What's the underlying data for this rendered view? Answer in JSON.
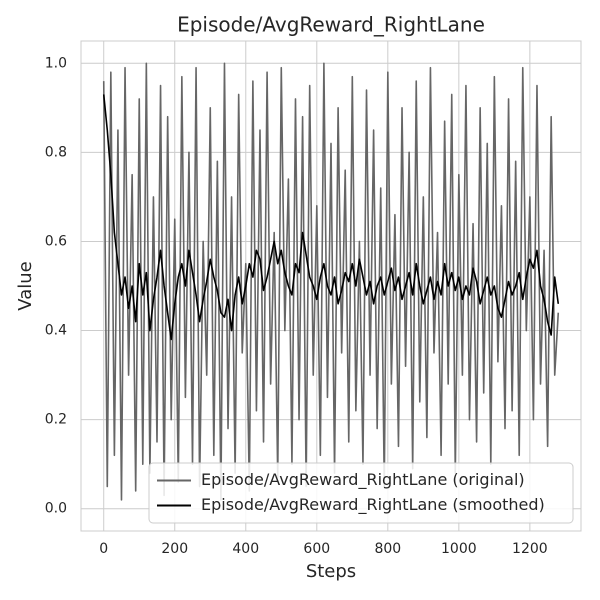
{
  "chart_data": {
    "type": "line",
    "title": "Episode/AvgReward_RightLane",
    "x_label": "Steps",
    "y_label": "Value",
    "x": [
      0,
      10,
      20,
      30,
      40,
      50,
      60,
      70,
      80,
      90,
      100,
      110,
      120,
      130,
      140,
      150,
      160,
      170,
      180,
      190,
      200,
      210,
      220,
      230,
      240,
      250,
      260,
      270,
      280,
      290,
      300,
      310,
      320,
      330,
      340,
      350,
      360,
      370,
      380,
      390,
      400,
      410,
      420,
      430,
      440,
      450,
      460,
      470,
      480,
      490,
      500,
      510,
      520,
      530,
      540,
      550,
      560,
      570,
      580,
      590,
      600,
      610,
      620,
      630,
      640,
      650,
      660,
      670,
      680,
      690,
      700,
      710,
      720,
      730,
      740,
      750,
      760,
      770,
      780,
      790,
      800,
      810,
      820,
      830,
      840,
      850,
      860,
      870,
      880,
      890,
      900,
      910,
      920,
      930,
      940,
      950,
      960,
      970,
      980,
      990,
      1000,
      1010,
      1020,
      1030,
      1040,
      1050,
      1060,
      1070,
      1080,
      1090,
      1100,
      1110,
      1120,
      1130,
      1140,
      1150,
      1160,
      1170,
      1180,
      1190,
      1200,
      1210,
      1220,
      1230,
      1240,
      1250,
      1260,
      1270,
      1280
    ],
    "series": [
      {
        "name": "Episode/AvgReward_RightLane (original)",
        "color": "#666666",
        "values": [
          0.96,
          0.05,
          0.98,
          0.12,
          0.85,
          0.02,
          0.99,
          0.3,
          0.75,
          0.04,
          0.92,
          0.1,
          1.0,
          0.08,
          0.7,
          0.15,
          0.95,
          0.03,
          0.88,
          0.2,
          0.65,
          0.06,
          0.97,
          0.25,
          0.8,
          0.1,
          0.99,
          0.05,
          0.6,
          0.3,
          0.9,
          0.12,
          0.78,
          0.02,
          1.0,
          0.18,
          0.7,
          0.08,
          0.93,
          0.35,
          0.55,
          0.04,
          0.96,
          0.22,
          0.85,
          0.15,
          0.98,
          0.28,
          0.62,
          0.07,
          0.99,
          0.4,
          0.74,
          0.1,
          0.92,
          0.2,
          0.88,
          0.05,
          0.95,
          0.3,
          0.68,
          0.12,
          1.0,
          0.25,
          0.82,
          0.08,
          0.9,
          0.35,
          0.76,
          0.15,
          0.97,
          0.22,
          0.6,
          0.1,
          0.94,
          0.3,
          0.85,
          0.18,
          0.72,
          0.05,
          0.98,
          0.28,
          0.66,
          0.14,
          0.9,
          0.32,
          0.8,
          0.09,
          0.96,
          0.24,
          0.7,
          0.16,
          0.99,
          0.35,
          0.62,
          0.12,
          0.87,
          0.28,
          0.93,
          0.08,
          0.75,
          0.3,
          0.95,
          0.2,
          0.64,
          0.15,
          0.9,
          0.26,
          0.82,
          0.1,
          0.97,
          0.33,
          0.68,
          0.18,
          0.92,
          0.22,
          0.78,
          0.12,
          0.99,
          0.4,
          0.7,
          0.2,
          0.95,
          0.28,
          0.58,
          0.14,
          0.88,
          0.3,
          0.44
        ]
      },
      {
        "name": "Episode/AvgReward_RightLane (smoothed)",
        "color": "#000000",
        "values": [
          0.93,
          0.85,
          0.75,
          0.62,
          0.55,
          0.48,
          0.52,
          0.45,
          0.5,
          0.42,
          0.55,
          0.48,
          0.53,
          0.4,
          0.47,
          0.52,
          0.58,
          0.5,
          0.44,
          0.38,
          0.46,
          0.52,
          0.55,
          0.5,
          0.58,
          0.53,
          0.48,
          0.42,
          0.47,
          0.51,
          0.56,
          0.52,
          0.49,
          0.44,
          0.43,
          0.47,
          0.4,
          0.48,
          0.52,
          0.46,
          0.5,
          0.55,
          0.52,
          0.58,
          0.56,
          0.49,
          0.52,
          0.56,
          0.6,
          0.55,
          0.58,
          0.53,
          0.5,
          0.48,
          0.55,
          0.53,
          0.62,
          0.57,
          0.52,
          0.5,
          0.47,
          0.52,
          0.55,
          0.5,
          0.48,
          0.52,
          0.46,
          0.49,
          0.53,
          0.51,
          0.55,
          0.5,
          0.56,
          0.52,
          0.48,
          0.51,
          0.46,
          0.5,
          0.52,
          0.48,
          0.51,
          0.54,
          0.49,
          0.52,
          0.47,
          0.5,
          0.53,
          0.48,
          0.55,
          0.5,
          0.46,
          0.49,
          0.52,
          0.47,
          0.51,
          0.48,
          0.55,
          0.5,
          0.53,
          0.49,
          0.52,
          0.47,
          0.5,
          0.48,
          0.54,
          0.51,
          0.46,
          0.49,
          0.52,
          0.48,
          0.5,
          0.45,
          0.43,
          0.47,
          0.51,
          0.48,
          0.5,
          0.53,
          0.47,
          0.52,
          0.56,
          0.54,
          0.58,
          0.5,
          0.47,
          0.42,
          0.39,
          0.52,
          0.46
        ]
      }
    ],
    "xlim": [
      -64,
      1344
    ],
    "ylim": [
      -0.05,
      1.05
    ],
    "xticks": [
      0,
      200,
      400,
      600,
      800,
      1000,
      1200
    ],
    "yticks": [
      {
        "value": 0,
        "label": "0.0"
      },
      0.2,
      0.4,
      0.6,
      0.8,
      {
        "value": 1,
        "label": "1.0"
      }
    ],
    "grid": true,
    "legend": "lower right"
  }
}
